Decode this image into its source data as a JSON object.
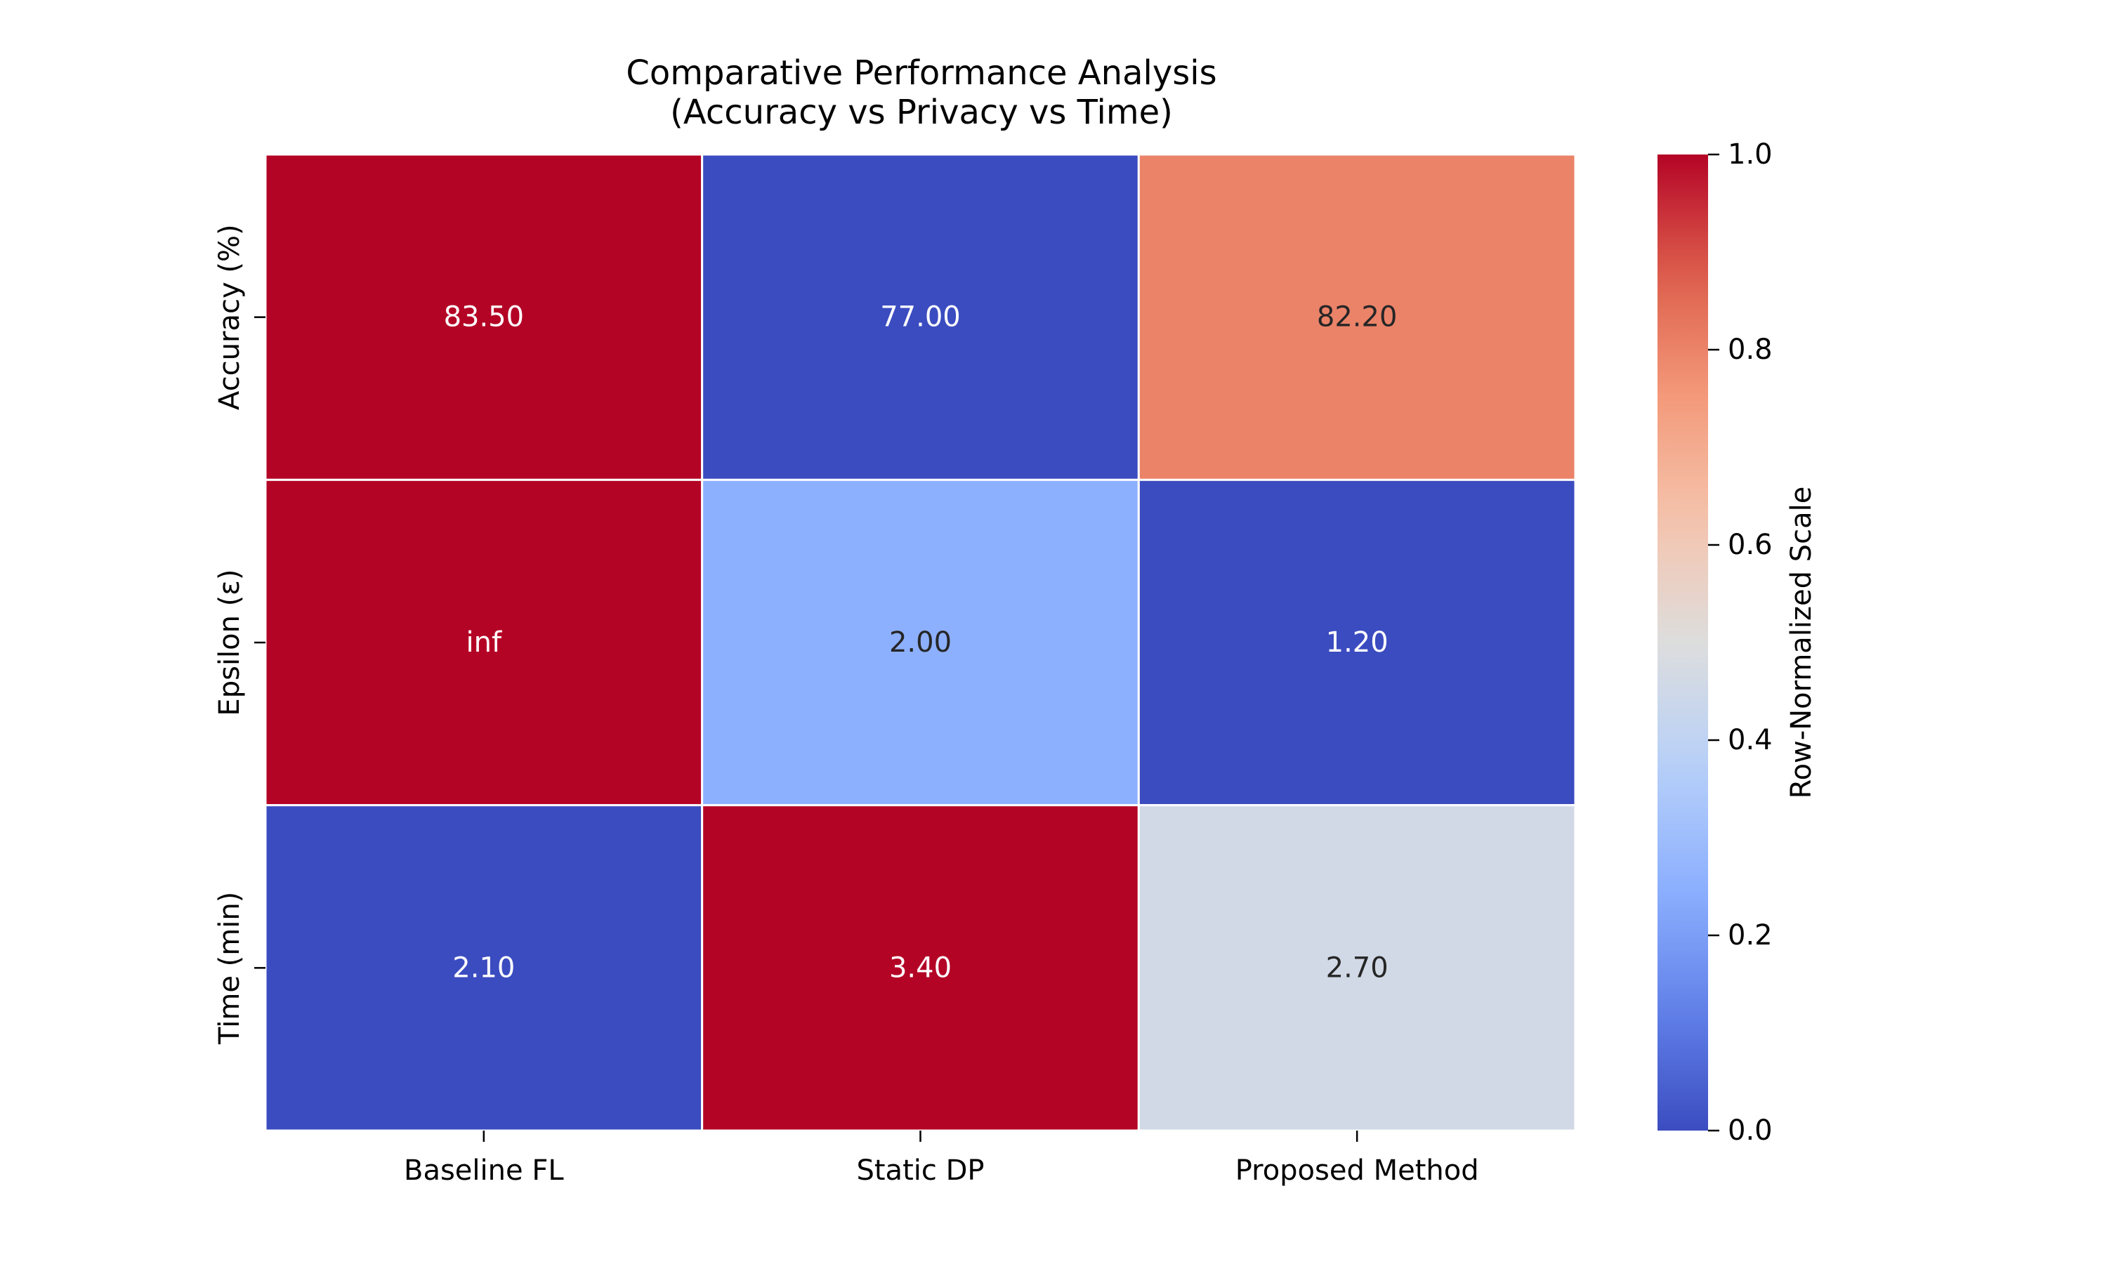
{
  "chart_data": {
    "type": "heatmap",
    "title": [
      "Comparative Performance Analysis",
      "(Accuracy vs Privacy vs Time)"
    ],
    "x_categories": [
      "Baseline FL",
      "Static DP",
      "Proposed Method"
    ],
    "y_categories": [
      "Accuracy (%)",
      "Epsilon (ε)",
      "Time (min)"
    ],
    "cell_labels": [
      [
        "83.50",
        "77.00",
        "82.20"
      ],
      [
        "inf",
        "2.00",
        "1.20"
      ],
      [
        "2.10",
        "3.40",
        "2.70"
      ]
    ],
    "normalized_values": [
      [
        1.0,
        0.0,
        0.8
      ],
      [
        1.0,
        0.25,
        0.0
      ],
      [
        0.0,
        1.0,
        0.46
      ]
    ],
    "colormap": "coolwarm",
    "colorbar": {
      "label": "Row-Normalized Scale",
      "range": [
        0.0,
        1.0
      ],
      "ticks": [
        "0.0",
        "0.2",
        "0.4",
        "0.6",
        "0.8",
        "1.0"
      ]
    },
    "cell_border_color": "#ffffff"
  }
}
